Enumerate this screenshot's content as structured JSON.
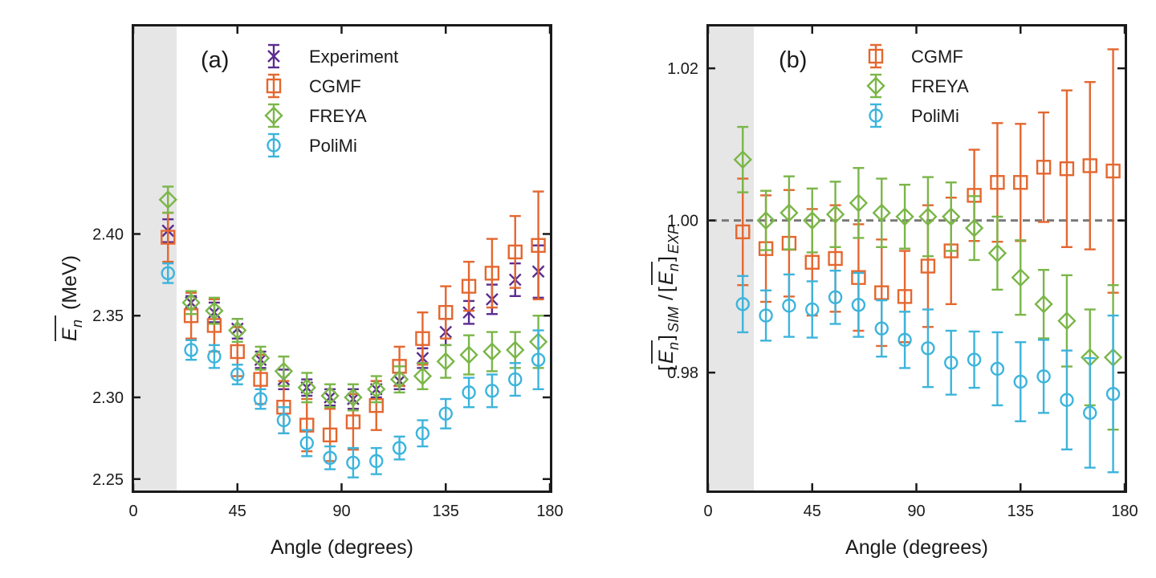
{
  "chart_data": [
    {
      "panel": "(a)",
      "type": "scatter",
      "xlabel": "Angle (degrees)",
      "ylabel": "(MeV)",
      "ylabel_symbol": "E",
      "ylabel_subscript": "n",
      "xlim": [
        0,
        180
      ],
      "ylim": [
        2.243,
        2.527
      ],
      "xticks": [
        0,
        45,
        90,
        135,
        180
      ],
      "yticks": [
        2.25,
        2.3,
        2.35,
        2.4
      ],
      "ytick_labels": [
        "2.25",
        "2.30",
        "2.35",
        "2.40"
      ],
      "shaded_region": [
        0,
        18
      ],
      "legend_position": "top-right",
      "series": [
        {
          "name": "Experiment",
          "marker": "x",
          "color": "#5b2c8f",
          "x": [
            15,
            25,
            35,
            45,
            55,
            65,
            75,
            85,
            95,
            105,
            115,
            125,
            135,
            145,
            155,
            165,
            175
          ],
          "y": [
            2.402,
            2.358,
            2.352,
            2.342,
            2.323,
            2.311,
            2.306,
            2.3,
            2.299,
            2.305,
            2.31,
            2.324,
            2.34,
            2.352,
            2.36,
            2.372,
            2.377
          ],
          "err": [
            0.007,
            0.004,
            0.006,
            0.006,
            0.005,
            0.006,
            0.005,
            0.005,
            0.006,
            0.005,
            0.005,
            0.006,
            0.008,
            0.007,
            0.009,
            0.01,
            0.016
          ]
        },
        {
          "name": "CGMF",
          "marker": "square",
          "color": "#e4672f",
          "x": [
            15,
            25,
            35,
            45,
            55,
            65,
            75,
            85,
            95,
            105,
            115,
            125,
            135,
            145,
            155,
            165,
            175
          ],
          "y": [
            2.398,
            2.35,
            2.344,
            2.328,
            2.311,
            2.294,
            2.283,
            2.277,
            2.285,
            2.295,
            2.319,
            2.336,
            2.352,
            2.368,
            2.376,
            2.389,
            2.393
          ],
          "err": [
            0.015,
            0.014,
            0.016,
            0.015,
            0.015,
            0.016,
            0.016,
            0.016,
            0.017,
            0.015,
            0.012,
            0.016,
            0.016,
            0.015,
            0.021,
            0.022,
            0.033
          ]
        },
        {
          "name": "FREYA",
          "marker": "diamond",
          "color": "#7ab648",
          "x": [
            15,
            25,
            35,
            45,
            55,
            65,
            75,
            85,
            95,
            105,
            115,
            125,
            135,
            145,
            155,
            165,
            175
          ],
          "y": [
            2.421,
            2.358,
            2.353,
            2.341,
            2.324,
            2.316,
            2.306,
            2.301,
            2.3,
            2.305,
            2.311,
            2.313,
            2.322,
            2.326,
            2.328,
            2.329,
            2.334
          ],
          "err": [
            0.008,
            0.007,
            0.008,
            0.007,
            0.007,
            0.009,
            0.009,
            0.007,
            0.008,
            0.008,
            0.008,
            0.008,
            0.01,
            0.012,
            0.012,
            0.011,
            0.016
          ]
        },
        {
          "name": "PoliMi",
          "marker": "circle",
          "color": "#3cb4dc",
          "x": [
            15,
            25,
            35,
            45,
            55,
            65,
            75,
            85,
            95,
            105,
            115,
            125,
            135,
            145,
            155,
            165,
            175
          ],
          "y": [
            2.376,
            2.329,
            2.325,
            2.314,
            2.299,
            2.286,
            2.272,
            2.263,
            2.26,
            2.261,
            2.269,
            2.278,
            2.29,
            2.303,
            2.304,
            2.311,
            2.323
          ],
          "err": [
            0.006,
            0.006,
            0.007,
            0.006,
            0.006,
            0.008,
            0.008,
            0.007,
            0.009,
            0.008,
            0.007,
            0.008,
            0.009,
            0.009,
            0.01,
            0.01,
            0.018
          ]
        }
      ]
    },
    {
      "panel": "(b)",
      "type": "scatter",
      "xlabel": "Angle (degrees)",
      "ylabel_parts": [
        "E",
        "n",
        "SIM",
        "/",
        "E",
        "n",
        "EXP"
      ],
      "xlim": [
        0,
        180
      ],
      "ylim": [
        0.9645,
        1.0255
      ],
      "xticks": [
        0,
        45,
        90,
        135,
        180
      ],
      "yticks": [
        0.98,
        1.0,
        1.02
      ],
      "ytick_labels": [
        "0.98",
        "1.00",
        "1.02"
      ],
      "shaded_region": [
        0,
        18
      ],
      "reference_line": 1.0,
      "legend_position": "top-right",
      "series": [
        {
          "name": "CGMF",
          "marker": "square",
          "color": "#e4672f",
          "x": [
            15,
            25,
            35,
            45,
            55,
            65,
            75,
            85,
            95,
            105,
            115,
            125,
            135,
            145,
            155,
            165,
            175
          ],
          "y": [
            0.9985,
            0.9963,
            0.997,
            0.9945,
            0.995,
            0.9925,
            0.9905,
            0.99,
            0.994,
            0.996,
            1.0033,
            1.005,
            1.005,
            1.007,
            1.0068,
            1.0072,
            1.0065
          ],
          "err": [
            0.007,
            0.007,
            0.007,
            0.007,
            0.007,
            0.007,
            0.007,
            0.006,
            0.008,
            0.007,
            0.006,
            0.0078,
            0.0077,
            0.0072,
            0.0103,
            0.011,
            0.016
          ]
        },
        {
          "name": "FREYA",
          "marker": "diamond",
          "color": "#7ab648",
          "x": [
            15,
            25,
            35,
            45,
            55,
            65,
            75,
            85,
            95,
            105,
            115,
            125,
            135,
            145,
            155,
            165,
            175
          ],
          "y": [
            1.008,
            1.0,
            1.001,
            1.0,
            1.0008,
            1.0023,
            1.001,
            1.0005,
            1.0005,
            1.0005,
            0.999,
            0.9957,
            0.9925,
            0.989,
            0.9868,
            0.982,
            0.982
          ],
          "err": [
            0.0043,
            0.0039,
            0.0048,
            0.0042,
            0.0043,
            0.0046,
            0.0045,
            0.0042,
            0.0052,
            0.0045,
            0.0042,
            0.0048,
            0.0049,
            0.0045,
            0.006,
            0.0063,
            0.0095
          ]
        },
        {
          "name": "PoliMi",
          "marker": "circle",
          "color": "#3cb4dc",
          "x": [
            15,
            25,
            35,
            45,
            55,
            65,
            75,
            85,
            95,
            105,
            115,
            125,
            135,
            145,
            155,
            165,
            175
          ],
          "y": [
            0.989,
            0.9875,
            0.9888,
            0.9883,
            0.9899,
            0.9889,
            0.9858,
            0.9843,
            0.9832,
            0.9813,
            0.9817,
            0.9805,
            0.9788,
            0.9795,
            0.9764,
            0.9747,
            0.9772
          ],
          "err": [
            0.0037,
            0.0033,
            0.0041,
            0.0037,
            0.0035,
            0.0042,
            0.0037,
            0.0037,
            0.0051,
            0.0042,
            0.0037,
            0.0048,
            0.0052,
            0.0048,
            0.0065,
            0.0072,
            0.0103
          ]
        }
      ]
    }
  ]
}
